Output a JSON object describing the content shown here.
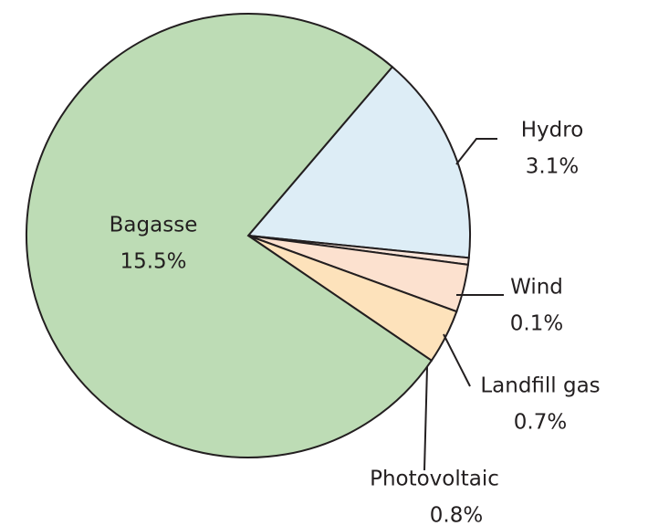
{
  "chart_data": {
    "type": "pie",
    "categories": [
      "Hydro",
      "Wind",
      "Landfill gas",
      "Photovoltaic",
      "Bagasse"
    ],
    "values": [
      3.1,
      0.1,
      0.7,
      0.8,
      15.5
    ],
    "value_labels": [
      "3.1%",
      "0.1%",
      "0.7%",
      "0.8%",
      "15.5%"
    ],
    "colors": [
      "#ddedf6",
      "#fbe6da",
      "#fce1cf",
      "#fde2bb",
      "#bddcb5"
    ]
  }
}
